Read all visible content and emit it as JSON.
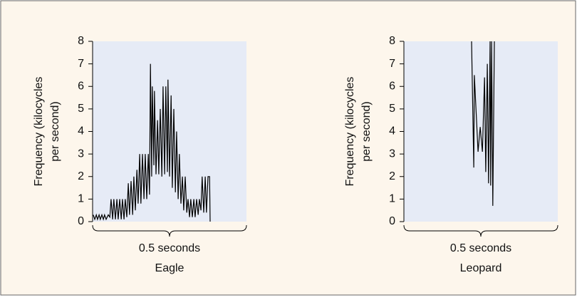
{
  "chart_data": [
    {
      "type": "line",
      "title": "Eagle",
      "xlabel": "0.5 seconds",
      "ylabel": [
        "Frequency (kilocycles",
        "per second)"
      ],
      "xlim": [
        0,
        0.5
      ],
      "ylim": [
        0,
        8
      ],
      "yticks": [
        0,
        1,
        2,
        3,
        4,
        5,
        6,
        7,
        8
      ],
      "color": "#000000",
      "x": [
        0.002,
        0.007,
        0.012,
        0.016,
        0.021,
        0.025,
        0.03,
        0.035,
        0.039,
        0.044,
        0.051,
        0.056,
        0.06,
        0.065,
        0.069,
        0.074,
        0.079,
        0.083,
        0.088,
        0.093,
        0.097,
        0.102,
        0.106,
        0.111,
        0.116,
        0.12,
        0.125,
        0.13,
        0.134,
        0.139,
        0.144,
        0.148,
        0.153,
        0.157,
        0.162,
        0.167,
        0.171,
        0.176,
        0.181,
        0.185,
        0.188,
        0.192,
        0.194,
        0.199,
        0.201,
        0.206,
        0.211,
        0.215,
        0.22,
        0.225,
        0.229,
        0.234,
        0.238,
        0.243,
        0.245,
        0.25,
        0.255,
        0.259,
        0.264,
        0.269,
        0.273,
        0.278,
        0.282,
        0.287,
        0.292,
        0.296,
        0.301,
        0.306,
        0.31,
        0.315,
        0.319,
        0.324,
        0.329,
        0.333,
        0.338,
        0.343,
        0.347,
        0.352,
        0.356,
        0.361,
        0.366,
        0.37,
        0.375,
        0.38,
        0.382
      ],
      "values": [
        0.3,
        0.1,
        0.3,
        0.1,
        0.3,
        0.1,
        0.3,
        0.1,
        0.3,
        0.1,
        0.3,
        0.2,
        1.0,
        0.1,
        1.0,
        0.1,
        1.0,
        0.1,
        1.0,
        0.1,
        1.0,
        0.1,
        1.0,
        0.2,
        1.7,
        0.3,
        1.8,
        0.3,
        2.0,
        0.5,
        2.3,
        0.8,
        3.0,
        0.8,
        3.0,
        1.0,
        3.0,
        1.0,
        3.0,
        1.2,
        7.0,
        2.0,
        6.0,
        2.5,
        5.8,
        2.1,
        4.5,
        2.1,
        5.0,
        2.0,
        6.0,
        2.1,
        6.0,
        2.2,
        6.3,
        2.0,
        5.6,
        1.5,
        5.0,
        1.3,
        4.0,
        1.0,
        3.0,
        0.8,
        2.0,
        0.5,
        2.0,
        0.4,
        1.0,
        0.2,
        1.0,
        0.2,
        1.0,
        0.2,
        1.0,
        0.3,
        1.0,
        0.5,
        2.0,
        0.4,
        2.0,
        0.4,
        2.0,
        2.0,
        0
      ]
    },
    {
      "type": "line",
      "title": "Leopard",
      "xlabel": "0.5 seconds",
      "ylabel": [
        "Frequency (kilocycles",
        "per second)"
      ],
      "xlim": [
        0,
        0.5
      ],
      "ylim": [
        0,
        8
      ],
      "yticks": [
        0,
        1,
        2,
        3,
        4,
        5,
        6,
        7,
        8
      ],
      "color": "#000000",
      "x": [
        0.22,
        0.227,
        0.229,
        0.241,
        0.248,
        0.255,
        0.262,
        0.266,
        0.271,
        0.275,
        0.28,
        0.282,
        0.285,
        0.289,
        0.294
      ],
      "values": [
        8,
        2.4,
        6.5,
        3.1,
        4.2,
        3.1,
        6.4,
        2.2,
        7.0,
        1.7,
        8,
        1.6,
        8,
        0.7,
        8
      ]
    }
  ]
}
